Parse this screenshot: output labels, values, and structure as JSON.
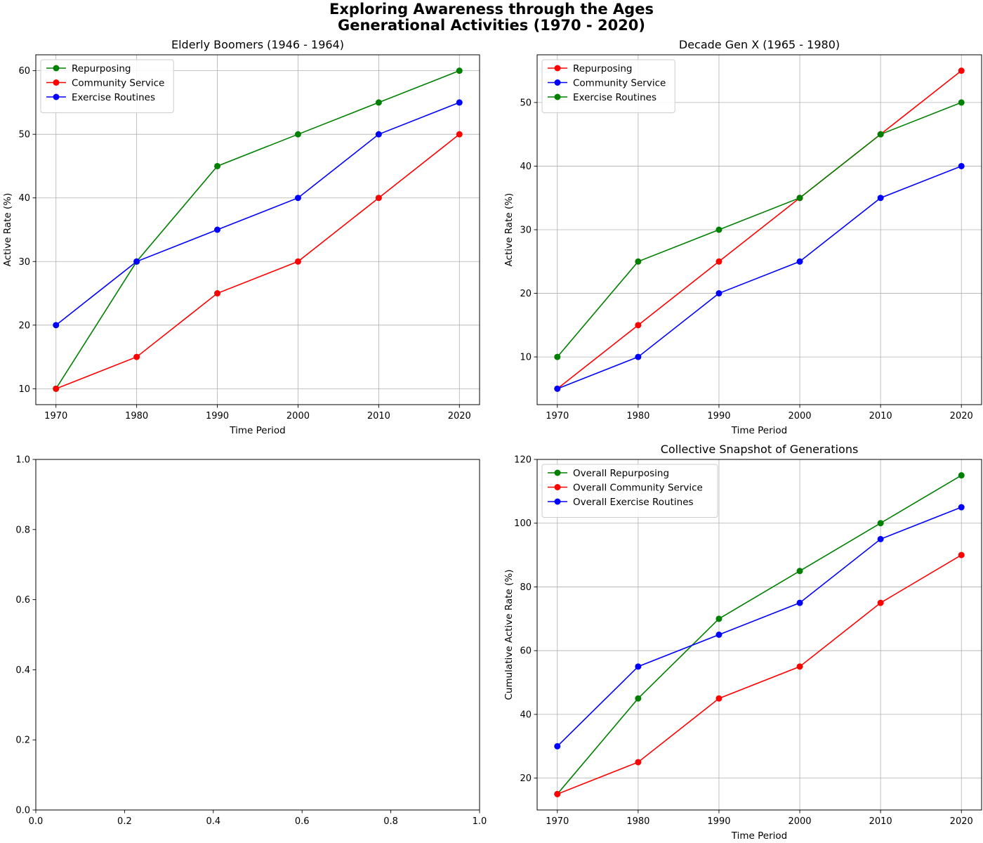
{
  "figure": {
    "title_line1": "Exploring Awareness through the Ages",
    "title_line2": "Generational Activities (1970 - 2020)"
  },
  "chart_data": [
    {
      "type": "line",
      "title": "Elderly Boomers (1946 - 1964)",
      "xlabel": "Time Period",
      "ylabel": "Active Rate (%)",
      "x": [
        1970,
        1980,
        1990,
        2000,
        2010,
        2020
      ],
      "xlim": [
        1967.5,
        2022.5
      ],
      "ylim": [
        7.5,
        62.5
      ],
      "yticks": [
        10,
        20,
        30,
        40,
        50,
        60
      ],
      "grid": true,
      "legend_position": "upper-left",
      "series": [
        {
          "name": "Repurposing",
          "color": "#008000",
          "values": [
            10,
            30,
            45,
            50,
            55,
            60
          ]
        },
        {
          "name": "Community Service",
          "color": "#ff0000",
          "values": [
            10,
            15,
            25,
            30,
            40,
            50
          ]
        },
        {
          "name": "Exercise Routines",
          "color": "#0000ff",
          "values": [
            20,
            30,
            35,
            40,
            50,
            55
          ]
        }
      ]
    },
    {
      "type": "line",
      "title": "Decade Gen X (1965 - 1980)",
      "xlabel": "Time Period",
      "ylabel": "Active Rate (%)",
      "x": [
        1970,
        1980,
        1990,
        2000,
        2010,
        2020
      ],
      "xlim": [
        1967.5,
        2022.5
      ],
      "ylim": [
        2.5,
        57.5
      ],
      "yticks": [
        10,
        20,
        30,
        40,
        50
      ],
      "grid": true,
      "legend_position": "upper-left",
      "series": [
        {
          "name": "Repurposing",
          "color": "#ff0000",
          "values": [
            5,
            15,
            25,
            35,
            45,
            55
          ]
        },
        {
          "name": "Community Service",
          "color": "#0000ff",
          "values": [
            5,
            10,
            20,
            25,
            35,
            40
          ]
        },
        {
          "name": "Exercise Routines",
          "color": "#008000",
          "values": [
            10,
            25,
            30,
            35,
            45,
            50
          ]
        }
      ]
    },
    {
      "type": "line",
      "title": "",
      "xlabel": "",
      "ylabel": "",
      "x": [],
      "xlim": [
        0,
        1
      ],
      "ylim": [
        0,
        1
      ],
      "xticks": [
        0.0,
        0.2,
        0.4,
        0.6,
        0.8,
        1.0
      ],
      "yticks": [
        0.0,
        0.2,
        0.4,
        0.6,
        0.8,
        1.0
      ],
      "tick_labels": [
        "0.0",
        "0.2",
        "0.4",
        "0.6",
        "0.8",
        "1.0"
      ],
      "grid": false,
      "series": []
    },
    {
      "type": "line",
      "title": "Collective Snapshot of Generations",
      "xlabel": "Time Period",
      "ylabel": "Cumulative Active Rate (%)",
      "x": [
        1970,
        1980,
        1990,
        2000,
        2010,
        2020
      ],
      "xlim": [
        1967.5,
        2022.5
      ],
      "ylim": [
        10,
        120
      ],
      "yticks": [
        20,
        40,
        60,
        80,
        100,
        120
      ],
      "grid": true,
      "legend_position": "upper-left",
      "series": [
        {
          "name": "Overall Repurposing",
          "color": "#008000",
          "values": [
            15,
            45,
            70,
            85,
            100,
            115
          ]
        },
        {
          "name": "Overall Community Service",
          "color": "#ff0000",
          "values": [
            15,
            25,
            45,
            55,
            75,
            90
          ]
        },
        {
          "name": "Overall Exercise Routines",
          "color": "#0000ff",
          "values": [
            30,
            55,
            65,
            75,
            95,
            105
          ]
        }
      ]
    }
  ]
}
